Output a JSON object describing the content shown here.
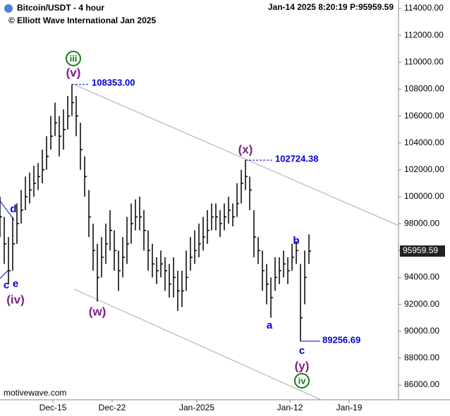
{
  "chart_data": {
    "type": "ohlc",
    "title": "Bitcoin/USDT - 4 hour",
    "subtitle": "© Elliott Wave International Jan 2025",
    "timestamp": "Jan-14 2025  8:20:19  P:95959.59",
    "watermark": "motivewave.com",
    "last_price": {
      "value": 95959.59,
      "label": "95959.59"
    },
    "xlim": [
      8.75,
      55.83
    ],
    "xticks": [
      {
        "value": 15,
        "label": "Dec-15"
      },
      {
        "value": 22,
        "label": "Dec-22"
      },
      {
        "value": 32,
        "label": "Jan-2025"
      },
      {
        "value": 43,
        "label": "Jan-12"
      },
      {
        "value": 50,
        "label": "Jan-19"
      }
    ],
    "ylim": [
      84900,
      114630
    ],
    "yticks": [
      {
        "value": 86000,
        "label": "86000.00"
      },
      {
        "value": 88000,
        "label": "88000.00"
      },
      {
        "value": 90000,
        "label": "90000.00"
      },
      {
        "value": 92000,
        "label": "92000.00"
      },
      {
        "value": 94000,
        "label": "94000.00"
      },
      {
        "value": 96000,
        "label": "96000.00"
      },
      {
        "value": 98000,
        "label": "98000.00"
      },
      {
        "value": 100000,
        "label": "100000.00"
      },
      {
        "value": 102000,
        "label": "102000.00"
      },
      {
        "value": 104000,
        "label": "104000.00"
      },
      {
        "value": 106000,
        "label": "106000.00"
      },
      {
        "value": 108000,
        "label": "108000.00"
      },
      {
        "value": 110000,
        "label": "110000.00"
      },
      {
        "value": 112000,
        "label": "112000.00"
      },
      {
        "value": 114000,
        "label": "114000.00"
      }
    ],
    "color": "#000000",
    "x": [
      8.75,
      9.25,
      9.75,
      10.25,
      10.75,
      11.25,
      11.75,
      12.25,
      12.75,
      13.25,
      13.75,
      14.25,
      14.75,
      15.25,
      15.75,
      16.25,
      16.75,
      17.25,
      17.75,
      18.25,
      18.75,
      19.25,
      19.75,
      20.25,
      20.75,
      21.25,
      21.75,
      22.25,
      22.75,
      23.25,
      23.75,
      24.25,
      24.75,
      25.25,
      25.75,
      26.25,
      26.75,
      27.25,
      27.75,
      28.25,
      28.75,
      29.25,
      29.75,
      30.25,
      30.75,
      31.25,
      31.75,
      32.25,
      32.75,
      33.25,
      33.75,
      34.25,
      34.75,
      35.25,
      35.75,
      36.25,
      36.75,
      37.25,
      37.75,
      38.25,
      38.75,
      39.25,
      39.75,
      40.25,
      40.75,
      41.25,
      41.75,
      42.25,
      42.75,
      43.25,
      43.75,
      44.25,
      44.75,
      45.25
    ],
    "high": [
      100000,
      98500,
      97000,
      98500,
      99500,
      100500,
      101500,
      101800,
      102300,
      102500,
      103500,
      104500,
      106000,
      107000,
      106000,
      106500,
      107500,
      108353,
      107500,
      105500,
      103000,
      100500,
      98000,
      96500,
      97000,
      98000,
      99000,
      97500,
      96000,
      97000,
      98500,
      99500,
      99800,
      100000,
      99000,
      97500,
      96500,
      95500,
      96000,
      95500,
      95000,
      95500,
      94500,
      94500,
      96000,
      97000,
      97500,
      98000,
      98500,
      99000,
      99500,
      99500,
      99000,
      99500,
      100000,
      99500,
      101000,
      102000,
      102724,
      101500,
      99000,
      97000,
      96000,
      95000,
      94000,
      95500,
      95500,
      96000,
      95500,
      96500,
      96700,
      95000,
      96000,
      97200
    ],
    "low": [
      97000,
      95000,
      93500,
      94500,
      96500,
      98000,
      99000,
      99500,
      100000,
      100500,
      101000,
      102000,
      103500,
      104500,
      103000,
      103500,
      105000,
      106000,
      104500,
      102000,
      100000,
      97000,
      94500,
      92200,
      94000,
      95000,
      96000,
      94500,
      93000,
      94000,
      95000,
      96500,
      97500,
      97500,
      96000,
      94500,
      94000,
      93500,
      94000,
      93000,
      92500,
      92500,
      91500,
      91800,
      93000,
      94500,
      95000,
      95500,
      96000,
      96500,
      97500,
      97500,
      97000,
      97500,
      98000,
      97800,
      98500,
      99500,
      100500,
      99000,
      95500,
      95000,
      93000,
      92000,
      91000,
      93000,
      93500,
      94000,
      93500,
      94500,
      95000,
      89257,
      92000,
      95000
    ],
    "close": [
      98500,
      96500,
      94500,
      96500,
      98000,
      99000,
      100000,
      100500,
      101000,
      101500,
      102000,
      103000,
      104500,
      105500,
      104500,
      105000,
      106000,
      107000,
      106000,
      103500,
      101500,
      98500,
      96000,
      94000,
      95500,
      96500,
      97500,
      96000,
      94500,
      95500,
      96500,
      98000,
      98500,
      98500,
      97500,
      96000,
      95000,
      94500,
      95000,
      94500,
      93500,
      94000,
      93000,
      93000,
      94000,
      95500,
      96000,
      96500,
      97000,
      97500,
      98500,
      98500,
      98000,
      98500,
      99000,
      98500,
      99500,
      101000,
      101500,
      100500,
      97000,
      96000,
      94500,
      93500,
      92500,
      94000,
      94500,
      95000,
      94500,
      95500,
      96000,
      91000,
      94000,
      95960
    ],
    "annotations": [
      "(v)",
      "iii",
      "108353.00",
      "(w)",
      "(x)",
      "102724.38",
      "a",
      "b",
      "c",
      "89256.69",
      "(y)",
      "iv",
      "d",
      "c",
      "e",
      "(iv)"
    ]
  }
}
